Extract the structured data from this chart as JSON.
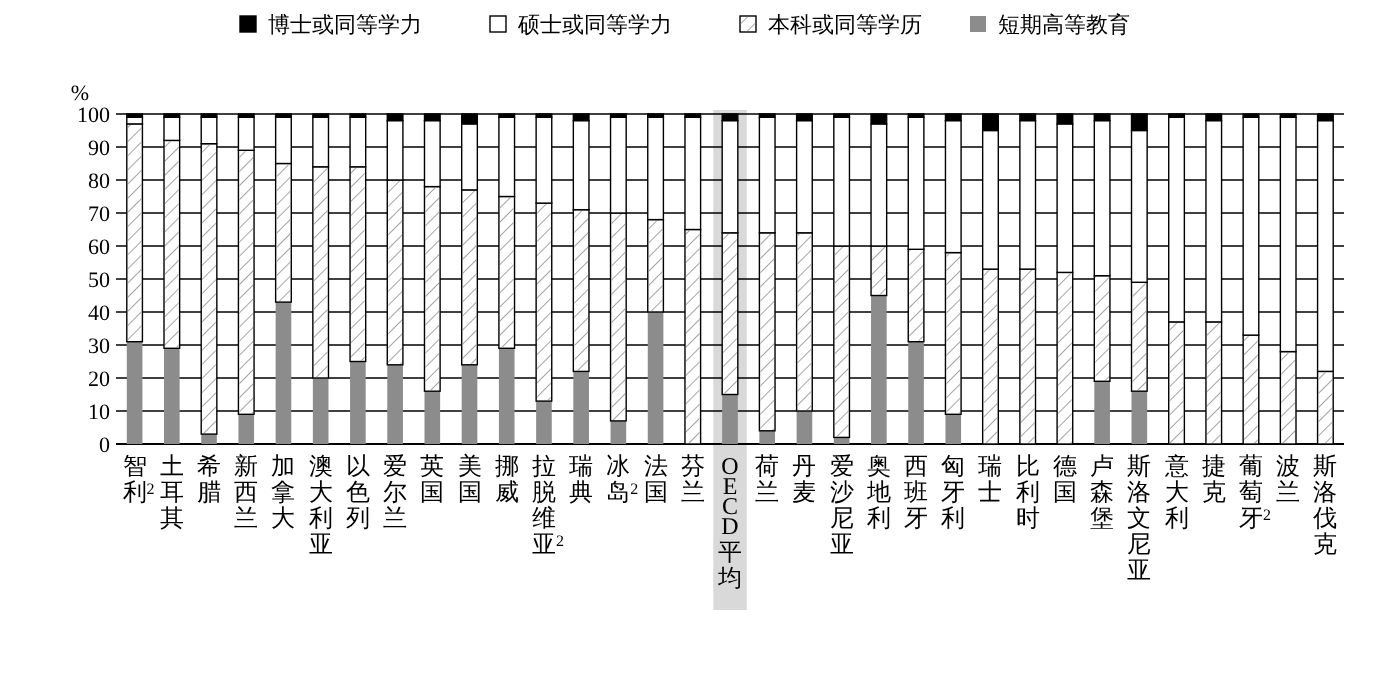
{
  "chart_data": {
    "type": "bar",
    "stacked": true,
    "ylabel": "%",
    "ylim": [
      0,
      100
    ],
    "yticks": [
      0,
      10,
      20,
      30,
      40,
      50,
      60,
      70,
      80,
      90,
      100
    ],
    "grid": "y",
    "legend": "top",
    "categories": [
      "智利$^{2}$",
      "土耳其",
      "希腊",
      "新西兰",
      "加拿大",
      "澳大利亚",
      "以色列",
      "爱尔兰",
      "英国",
      "美国",
      "挪威",
      "拉脱维亚$^{2}$",
      "瑞典",
      "冰岛$^{2}$",
      "法国",
      "芬兰",
      "OECD平均",
      "荷兰",
      "丹麦",
      "爱沙尼亚",
      "奥地利",
      "西班牙",
      "匈牙利",
      "瑞士",
      "比利时",
      "德国",
      "卢森堡",
      "斯洛文尼亚",
      "意大利",
      "捷克",
      "葡萄牙$^{2}$",
      "波兰",
      "斯洛伐克"
    ],
    "series": [
      {
        "name": "短期高等教育",
        "color": "#8c8c8c",
        "values": [
          31,
          29,
          3,
          9,
          43,
          20,
          25,
          24,
          16,
          24,
          29,
          13,
          22,
          7,
          40,
          0,
          15,
          4,
          10,
          2,
          45,
          31,
          9,
          0,
          0,
          0,
          19,
          16,
          0,
          0,
          0,
          0,
          0
        ]
      },
      {
        "name": "本科或同等学历",
        "color": "#ffffff",
        "values": [
          66,
          63,
          88,
          80,
          42,
          64,
          59,
          56,
          62,
          53,
          46,
          60,
          49,
          63,
          28,
          65,
          49,
          60,
          54,
          58,
          15,
          28,
          49,
          53,
          53,
          52,
          32,
          33,
          37,
          37,
          33,
          28,
          22
        ]
      },
      {
        "name": "硕士或同等学力",
        "color": "#ffffff",
        "values": [
          2,
          7,
          8,
          10,
          14,
          15,
          15,
          18,
          20,
          20,
          24,
          26,
          27,
          29,
          31,
          34,
          34,
          35,
          34,
          39,
          37,
          40,
          40,
          42,
          45,
          45,
          47,
          46,
          62,
          61,
          66,
          71,
          76
        ]
      },
      {
        "name": "博士或同等学力",
        "color": "#000000",
        "values": [
          1,
          1,
          1,
          1,
          1,
          1,
          1,
          2,
          2,
          3,
          1,
          1,
          2,
          1,
          1,
          1,
          2,
          1,
          2,
          1,
          3,
          1,
          2,
          5,
          2,
          3,
          2,
          5,
          1,
          2,
          1,
          1,
          2
        ]
      }
    ],
    "bands": [
      {
        "axis": "x",
        "from": "OECD平均",
        "to": "OECD平均",
        "color": "#d9d9d9"
      }
    ]
  }
}
